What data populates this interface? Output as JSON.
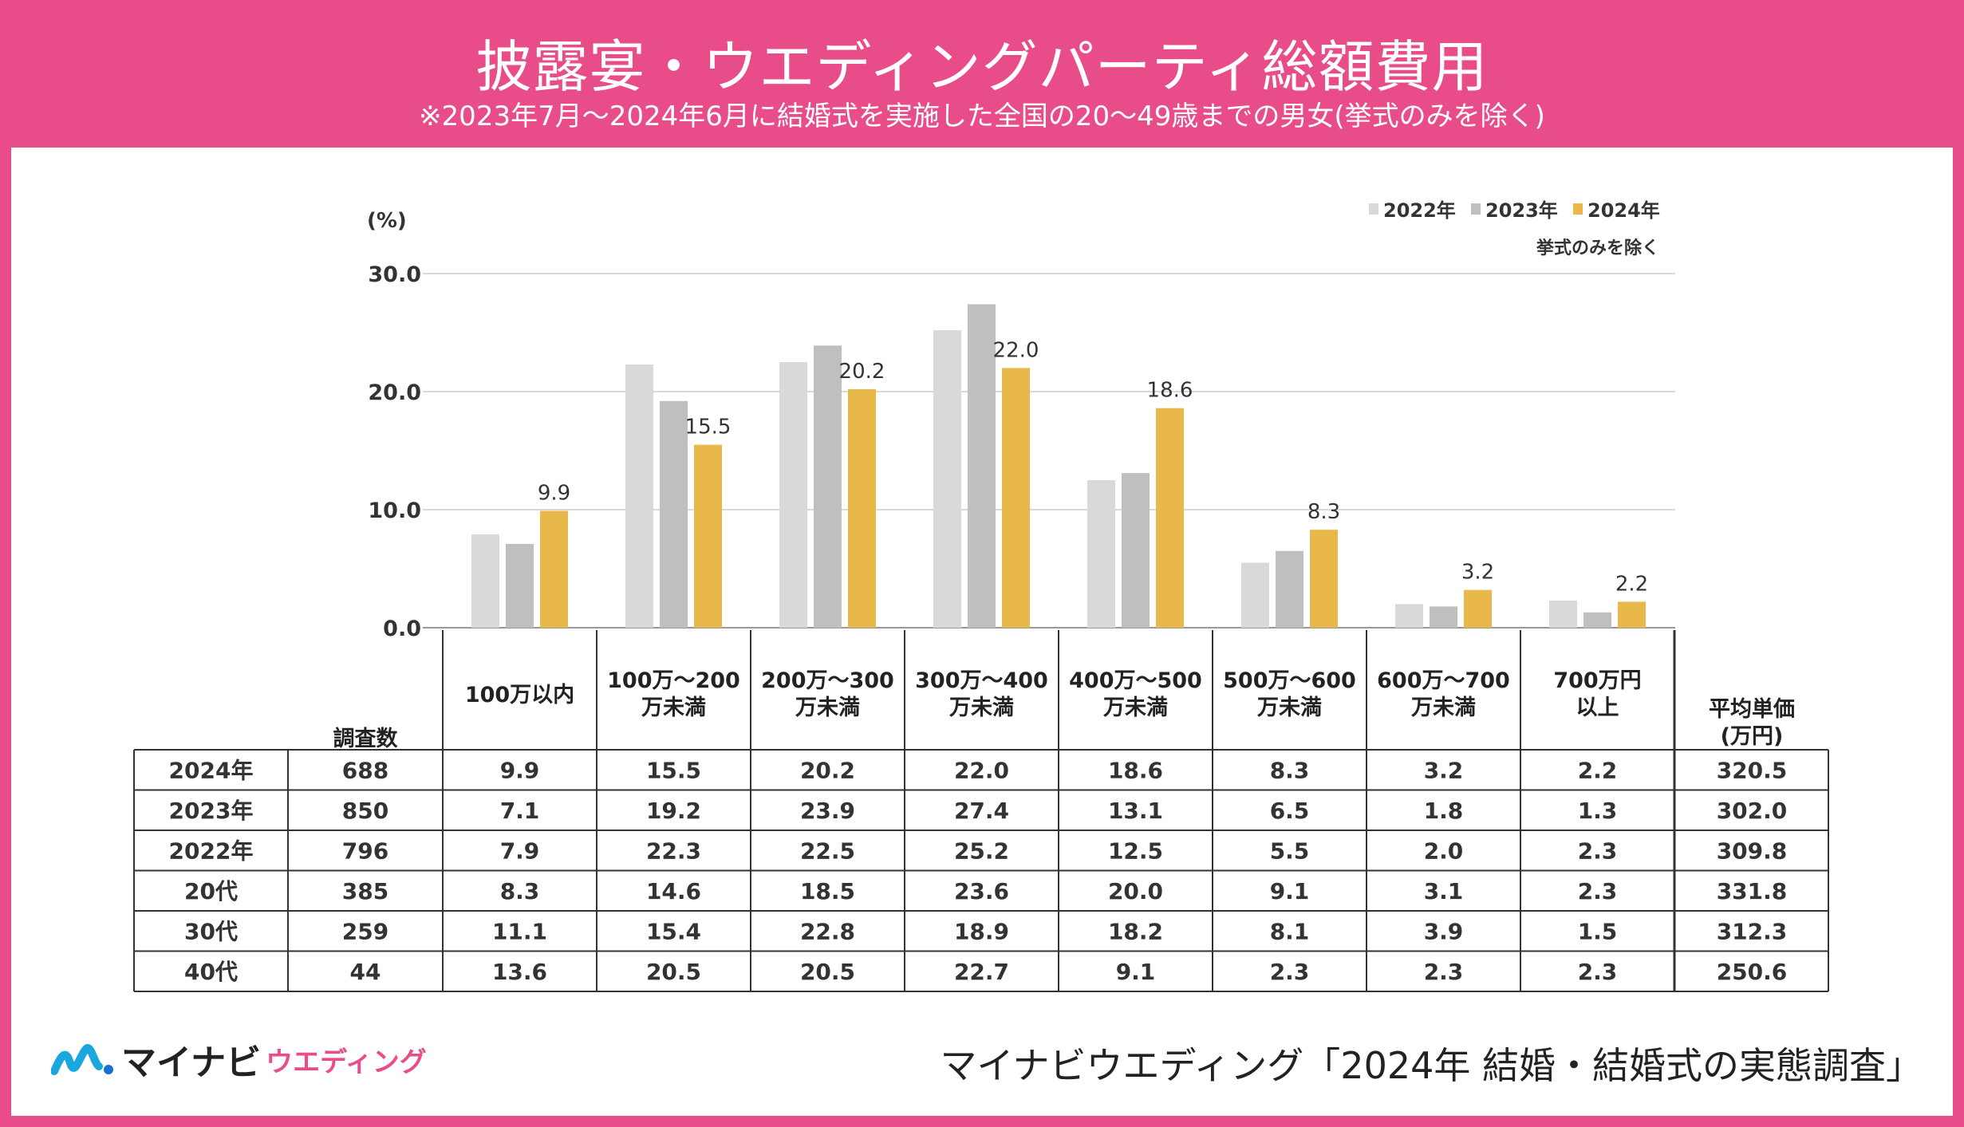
{
  "header": {
    "title": "披露宴・ウエディングパーティ総額費用",
    "subtitle": "※2023年7月～2024年6月に結婚式を実施した全国の20～49歳までの男女(挙式のみを除く)"
  },
  "footer": {
    "logo_main": "マイナビ",
    "logo_sub": "ウエディング",
    "source": "マイナビウエディング「2024年 結婚・結婚式の実態調査」"
  },
  "colors": {
    "brand_pink": "#e84d8a",
    "series": [
      "#d9d9d9",
      "#bfbfbf",
      "#e8b84b"
    ]
  },
  "chart_data": {
    "type": "bar",
    "unit_label": "(%)",
    "note": "挙式のみを除く",
    "ylim": [
      0,
      30
    ],
    "yticks": [
      "0.0",
      "10.0",
      "20.0",
      "30.0"
    ],
    "categories": [
      [
        "100万以内"
      ],
      [
        "100万～200",
        "万未満"
      ],
      [
        "200万～300",
        "万未満"
      ],
      [
        "300万～400",
        "万未満"
      ],
      [
        "400万～500",
        "万未満"
      ],
      [
        "500万～600",
        "万未満"
      ],
      [
        "600万～700",
        "万未満"
      ],
      [
        "700万円",
        "以上"
      ]
    ],
    "series": [
      {
        "name": "2022年",
        "values": [
          7.9,
          22.3,
          22.5,
          25.2,
          12.5,
          5.5,
          2.0,
          2.3
        ]
      },
      {
        "name": "2023年",
        "values": [
          7.1,
          19.2,
          23.9,
          27.4,
          13.1,
          6.5,
          1.8,
          1.3
        ]
      },
      {
        "name": "2024年",
        "values": [
          9.9,
          15.5,
          20.2,
          22.0,
          18.6,
          8.3,
          3.2,
          2.2
        ],
        "labels": [
          "9.9",
          "15.5",
          "20.2",
          "22.0",
          "18.6",
          "8.3",
          "3.2",
          "2.2"
        ]
      }
    ],
    "grid": true,
    "legend": "top-right",
    "table": {
      "count_header": "調査数",
      "avg_header": [
        "平均単価",
        "(万円)"
      ],
      "rows": [
        {
          "label": "2024年",
          "n": "688",
          "values": [
            "9.9",
            "15.5",
            "20.2",
            "22.0",
            "18.6",
            "8.3",
            "3.2",
            "2.2"
          ],
          "avg": "320.5"
        },
        {
          "label": "2023年",
          "n": "850",
          "values": [
            "7.1",
            "19.2",
            "23.9",
            "27.4",
            "13.1",
            "6.5",
            "1.8",
            "1.3"
          ],
          "avg": "302.0"
        },
        {
          "label": "2022年",
          "n": "796",
          "values": [
            "7.9",
            "22.3",
            "22.5",
            "25.2",
            "12.5",
            "5.5",
            "2.0",
            "2.3"
          ],
          "avg": "309.8"
        },
        {
          "label": "20代",
          "n": "385",
          "values": [
            "8.3",
            "14.6",
            "18.5",
            "23.6",
            "20.0",
            "9.1",
            "3.1",
            "2.3"
          ],
          "avg": "331.8"
        },
        {
          "label": "30代",
          "n": "259",
          "values": [
            "11.1",
            "15.4",
            "22.8",
            "18.9",
            "18.2",
            "8.1",
            "3.9",
            "1.5"
          ],
          "avg": "312.3"
        },
        {
          "label": "40代",
          "n": "44",
          "values": [
            "13.6",
            "20.5",
            "20.5",
            "22.7",
            "9.1",
            "2.3",
            "2.3",
            "2.3"
          ],
          "avg": "250.6"
        }
      ]
    }
  }
}
